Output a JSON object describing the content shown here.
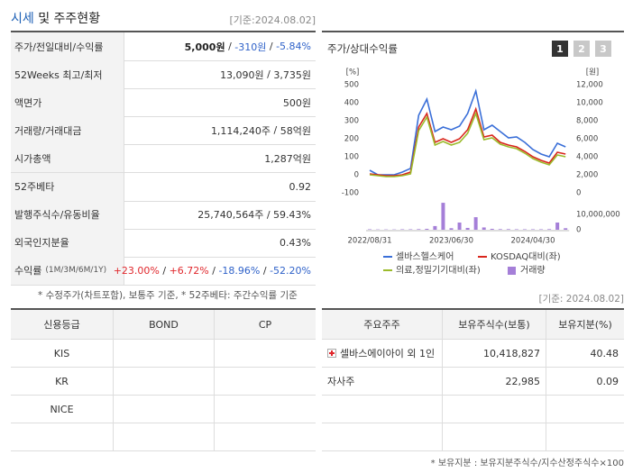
{
  "header": {
    "title": [
      "시세",
      "및 주주현황"
    ],
    "date": "[기준:2024.08.02]"
  },
  "summary": {
    "sep": " / ",
    "rows": [
      {
        "label": "주가/전일대비/수익률",
        "values": [
          "5,000원",
          "-310원",
          "-5.84%"
        ],
        "bold_first": true
      },
      {
        "label": "52Weeks 최고/최저",
        "values": [
          "13,090원",
          "3,735원"
        ]
      },
      {
        "label": "액면가",
        "values": [
          "500원"
        ]
      },
      {
        "label": "거래량/거래대금",
        "values": [
          "1,114,240주",
          "58억원"
        ]
      },
      {
        "label": "시가총액",
        "values": [
          "1,287억원"
        ]
      },
      {
        "label": "52주베타",
        "values": [
          "0.92"
        ]
      },
      {
        "label": "발행주식수/유동비율",
        "values": [
          "25,740,564주",
          "59.43%"
        ]
      },
      {
        "label": "외국인지분율",
        "values": [
          "0.43%"
        ]
      },
      {
        "label": "수익률",
        "sublabel": "(1M/3M/6M/1Y)",
        "values": [
          "+23.00%",
          "+6.72%",
          "-18.96%",
          "-52.20%"
        ]
      }
    ]
  },
  "note": "* 수정주가(차트포함), 보통주 기준, * 52주베타: 주간수익률 기준",
  "chart_data": {
    "type": "line",
    "title": "주가/상대수익률",
    "buttons": [
      "1",
      "2",
      "3"
    ],
    "active_button": 0,
    "y_unit": "[%]",
    "y2_unit": "[원]",
    "categories": [
      "2022/08/31",
      null,
      null,
      null,
      null,
      null,
      null,
      null,
      null,
      null,
      "2023/06/30",
      null,
      null,
      null,
      null,
      null,
      null,
      null,
      null,
      null,
      "2024/04/30",
      null,
      null,
      null,
      null
    ],
    "series": [
      {
        "name": "셀바스헬스케어",
        "color": "#3a6fd8",
        "axis": "y2",
        "values": [
          2500,
          2000,
          2000,
          2000,
          2300,
          2700,
          8600,
          10400,
          6800,
          7300,
          7000,
          7400,
          8800,
          11300,
          7000,
          7500,
          6800,
          6100,
          6200,
          5600,
          4800,
          4300,
          4000,
          5500,
          5100
        ]
      },
      {
        "name": "KOSDAQ대비(좌)",
        "color": "#d9261c",
        "values": [
          5,
          0,
          -5,
          -5,
          0,
          15,
          265,
          340,
          180,
          200,
          180,
          200,
          250,
          365,
          210,
          220,
          180,
          165,
          155,
          130,
          100,
          80,
          65,
          125,
          115
        ]
      },
      {
        "name": "의료,정밀기기대비(좌)",
        "color": "#9bbb2b",
        "values": [
          0,
          -5,
          -10,
          -10,
          -5,
          5,
          245,
          320,
          165,
          185,
          165,
          180,
          230,
          340,
          195,
          205,
          170,
          155,
          145,
          120,
          90,
          70,
          55,
          110,
          100
        ]
      },
      {
        "name": "거래량",
        "color": "#a57fd8",
        "type": "bar",
        "axis": "y3",
        "values": [
          300000,
          200000,
          200000,
          200000,
          300000,
          300000,
          400000,
          600000,
          2400000,
          17600000,
          1000000,
          4700000,
          1200000,
          8200000,
          1500000,
          600000,
          400000,
          400000,
          300000,
          300000,
          300000,
          300000,
          400000,
          4700000,
          1000000
        ]
      }
    ],
    "ylim": [
      -100,
      500
    ],
    "yticks": [
      500,
      400,
      300,
      200,
      100,
      0,
      -100
    ],
    "y2lim": [
      0,
      12000
    ],
    "y2ticks": [
      {
        "value": 12000,
        "label": "12,000"
      },
      {
        "value": 10000,
        "label": "10,000"
      },
      {
        "value": 8000,
        "label": "8,000"
      },
      {
        "value": 6000,
        "label": "6,000"
      },
      {
        "value": 4000,
        "label": "4,000"
      },
      {
        "value": 2000,
        "label": "2,000"
      },
      0
    ],
    "y3lim": [
      0,
      10000000
    ],
    "y3ticks": [
      {
        "value": 10000000,
        "label": "10,000,000"
      },
      0
    ],
    "grid": false
  },
  "credit": {
    "headers": [
      "신용등급",
      "BOND",
      "CP"
    ],
    "rows": [
      [
        "KIS"
      ],
      [
        "KR"
      ],
      [
        "NICE"
      ]
    ]
  },
  "holders": {
    "date": "[기준: 2024.08.02]",
    "headers": [
      "주요주주",
      "보유주식수(보통)",
      "보유지분(%)"
    ],
    "rows": [
      [
        "셀바스에이아이 외 1인",
        "10,418,827",
        "40.48"
      ],
      [
        "자사주",
        "22,985",
        "0.09"
      ]
    ],
    "note": "* 보유지분 : 보유지분주식수/지수산정주식수×100"
  }
}
